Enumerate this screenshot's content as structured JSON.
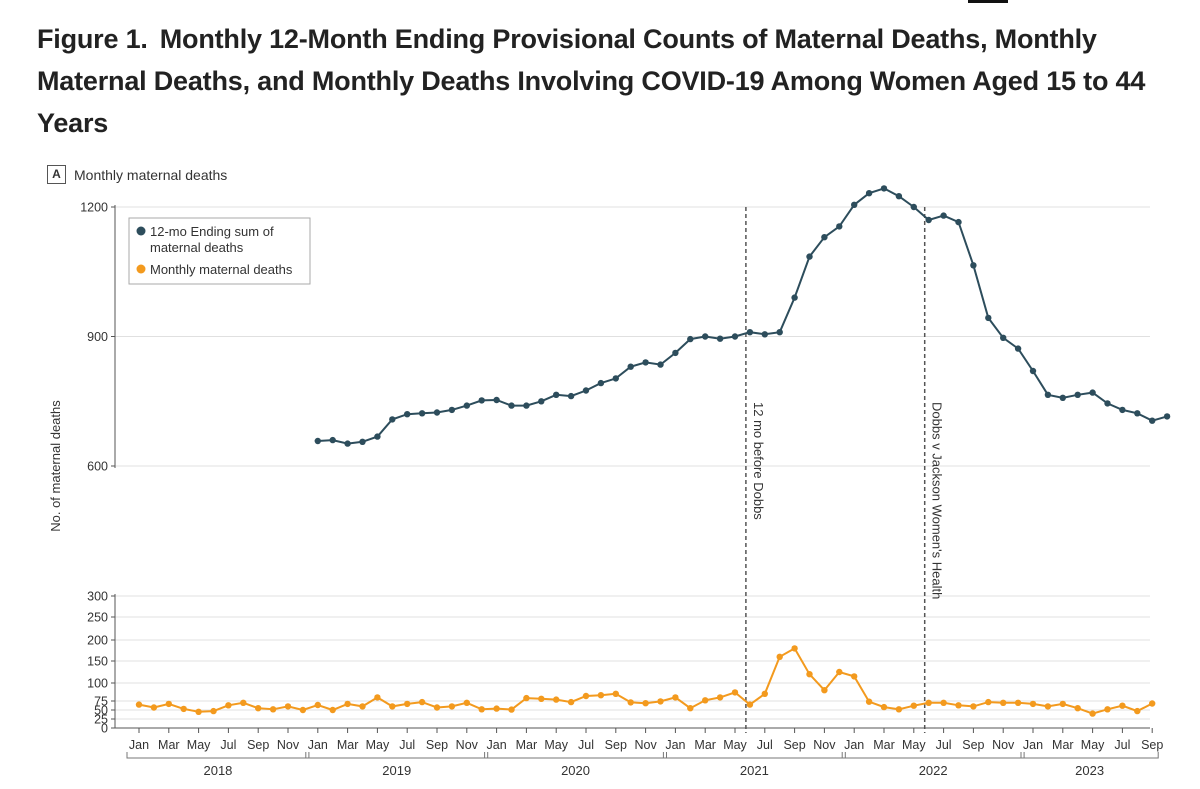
{
  "figure": {
    "number": "Figure 1.",
    "title": "Monthly 12-Month Ending Provisional Counts of Maternal Deaths, Monthly Maternal Deaths, and Monthly Deaths Involving COVID-19 Among Women Aged 15 to 44 Years",
    "panel_letter": "A",
    "panel_title": "Monthly maternal deaths"
  },
  "colors": {
    "series_12mo": "#2d4d5c",
    "series_monthly": "#f39a1e",
    "grid": "#e0e0e0",
    "axis": "#555555"
  },
  "chart_data": {
    "type": "line",
    "title": "Monthly maternal deaths",
    "ylabel": "No. of maternal deaths",
    "xlabel": "",
    "axis_break": true,
    "y_upper_range": [
      600,
      1200
    ],
    "y_upper_ticks": [
      1200,
      900,
      600
    ],
    "y_lower_range": [
      0,
      300
    ],
    "y_lower_ticks": [
      300,
      250,
      200,
      150,
      100,
      75,
      50,
      25,
      0
    ],
    "grid": true,
    "legend_position": "top-left",
    "month_ticks": [
      "Jan",
      "Mar",
      "May",
      "Jul",
      "Sep",
      "Nov",
      "Jan",
      "Mar",
      "May",
      "Jul",
      "Sep",
      "Nov",
      "Jan",
      "Mar",
      "May",
      "Jul",
      "Sep",
      "Nov",
      "Jan",
      "Mar",
      "May",
      "Jul",
      "Sep",
      "Nov",
      "Jan",
      "Mar",
      "May",
      "Jul",
      "Sep",
      "Nov",
      "Jan",
      "Mar",
      "May",
      "Jul",
      "Sep"
    ],
    "years": [
      "2018",
      "2019",
      "2020",
      "2021",
      "2022",
      "2023"
    ],
    "x_start": "2018-01",
    "x_end": "2023-09",
    "series": [
      {
        "name": "12-mo Ending sum of maternal deaths",
        "legend_line1": "12-mo Ending sum of",
        "legend_line2": "maternal deaths",
        "start_index": 12,
        "values": [
          658,
          660,
          652,
          656,
          668,
          708,
          720,
          722,
          724,
          730,
          740,
          752,
          753,
          740,
          740,
          750,
          765,
          762,
          775,
          792,
          803,
          830,
          840,
          835,
          862,
          894,
          900,
          895,
          900,
          910,
          905,
          910,
          990,
          1085,
          1130,
          1155,
          1205,
          1232,
          1243,
          1225,
          1200,
          1170,
          1180,
          1165,
          1065,
          943,
          897,
          872,
          820,
          765,
          758,
          765,
          770,
          745,
          730,
          722,
          705,
          715
        ]
      },
      {
        "name": "Monthly maternal deaths",
        "legend_line1": "Monthly maternal deaths",
        "start_index": 0,
        "values": [
          65,
          57,
          67,
          53,
          45,
          47,
          63,
          70,
          55,
          52,
          60,
          50,
          64,
          50,
          67,
          60,
          80,
          60,
          67,
          72,
          57,
          60,
          70,
          52,
          54,
          51,
          79,
          78,
          77,
          72,
          82,
          83,
          85,
          71,
          69,
          74,
          80,
          55,
          76,
          80,
          87,
          65,
          85,
          160,
          180,
          120,
          90,
          125,
          115,
          73,
          58,
          52,
          62,
          70,
          70,
          63,
          60,
          72,
          70,
          70,
          67,
          60,
          67,
          55,
          40,
          52,
          62,
          47,
          68
        ]
      }
    ],
    "annotations": [
      {
        "label": "12 mo before Dobbs",
        "date": "2021-06"
      },
      {
        "label": "Dobbs v Jackson Women's Health",
        "date": "2022-06"
      }
    ]
  }
}
